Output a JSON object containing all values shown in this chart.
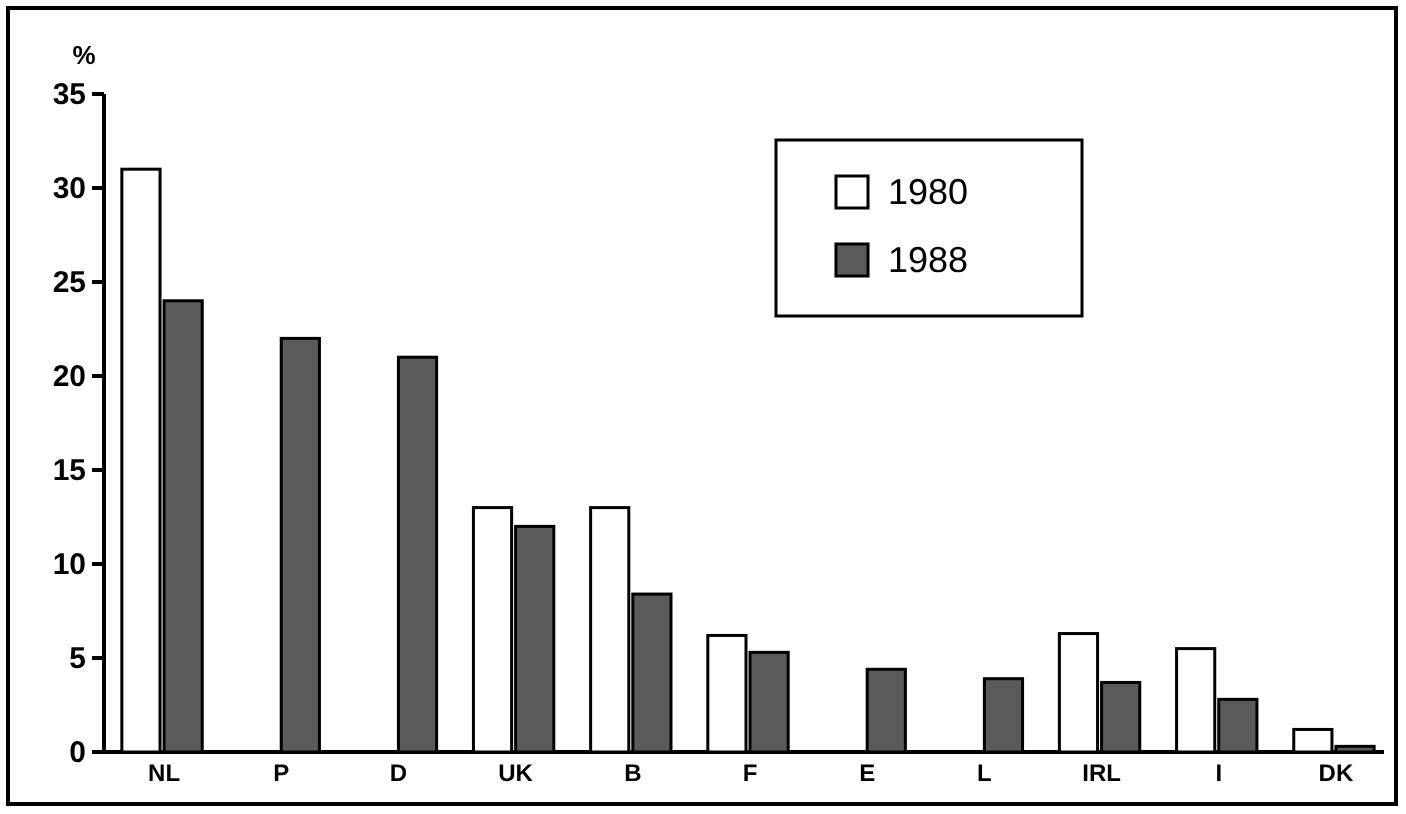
{
  "chart_data": {
    "type": "bar",
    "ylabel": "%",
    "categories": [
      "NL",
      "P",
      "D",
      "UK",
      "B",
      "F",
      "E",
      "L",
      "IRL",
      "I",
      "DK"
    ],
    "series": [
      {
        "name": "1980",
        "color": "#ffffff",
        "values": [
          31,
          null,
          null,
          13,
          13,
          6.2,
          null,
          null,
          6.3,
          5.5,
          1.2
        ]
      },
      {
        "name": "1988",
        "color": "#5a5a5a",
        "values": [
          24,
          22,
          21,
          12,
          8.4,
          5.3,
          4.4,
          3.9,
          3.7,
          2.8,
          0.3
        ]
      }
    ],
    "ylim": [
      0,
      35
    ],
    "yticks": [
      0,
      5,
      10,
      15,
      20,
      25,
      30,
      35
    ],
    "grid": false,
    "legend": "top right"
  }
}
